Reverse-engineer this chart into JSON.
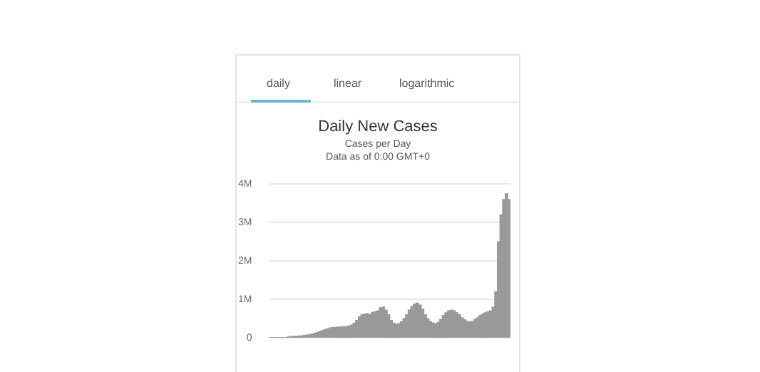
{
  "chart_data": {
    "type": "bar",
    "title": "Daily New Cases",
    "subtitle": "Cases per Day",
    "annotations": [
      "daily",
      "linear",
      "logarithmic",
      "Data as of 0:00 GMT+0"
    ],
    "categories": [
      null,
      null,
      null,
      null,
      null,
      null,
      null,
      null,
      null,
      null,
      null,
      null,
      null,
      null,
      null,
      null,
      null,
      null,
      null,
      null,
      null,
      null,
      null,
      null,
      null,
      null,
      null,
      null,
      null,
      null,
      null,
      null,
      null,
      null,
      null,
      null,
      null,
      null,
      null,
      null,
      null,
      null,
      null,
      null,
      null,
      null,
      null,
      null,
      null,
      null,
      null,
      null,
      null,
      null,
      null,
      null,
      null,
      null,
      null,
      null,
      null,
      null,
      null,
      null,
      null,
      null,
      null,
      null,
      null,
      null,
      null,
      null,
      null,
      null,
      null,
      null,
      null,
      null,
      null,
      null,
      null,
      null,
      null,
      null,
      null,
      null,
      null,
      null,
      null,
      null,
      null,
      null
    ],
    "values": [
      0,
      0,
      0,
      0,
      0,
      0,
      0,
      30000,
      40000,
      40000,
      40000,
      50000,
      50000,
      60000,
      70000,
      80000,
      100000,
      120000,
      140000,
      170000,
      190000,
      220000,
      240000,
      260000,
      270000,
      270000,
      280000,
      280000,
      290000,
      290000,
      310000,
      330000,
      380000,
      450000,
      550000,
      600000,
      620000,
      630000,
      600000,
      660000,
      680000,
      700000,
      780000,
      800000,
      720000,
      600000,
      450000,
      380000,
      350000,
      370000,
      420000,
      500000,
      600000,
      720000,
      820000,
      880000,
      900000,
      850000,
      750000,
      600000,
      500000,
      420000,
      380000,
      370000,
      400000,
      480000,
      580000,
      650000,
      700000,
      720000,
      700000,
      650000,
      600000,
      520000,
      470000,
      430000,
      420000,
      430000,
      480000,
      520000,
      580000,
      620000,
      650000,
      680000,
      700000,
      800000,
      1200000,
      2500000,
      3200000,
      3600000,
      3750000,
      3600000
    ],
    "color": "#999999",
    "ylim": [
      0,
      4000000
    ],
    "yticks": [
      0,
      {
        "value": 1000000,
        "label": "1M"
      },
      {
        "value": 2000000,
        "label": "2M"
      },
      {
        "value": 3000000,
        "label": "3M"
      },
      {
        "value": 4000000,
        "label": "4M"
      }
    ],
    "grid": "y"
  }
}
